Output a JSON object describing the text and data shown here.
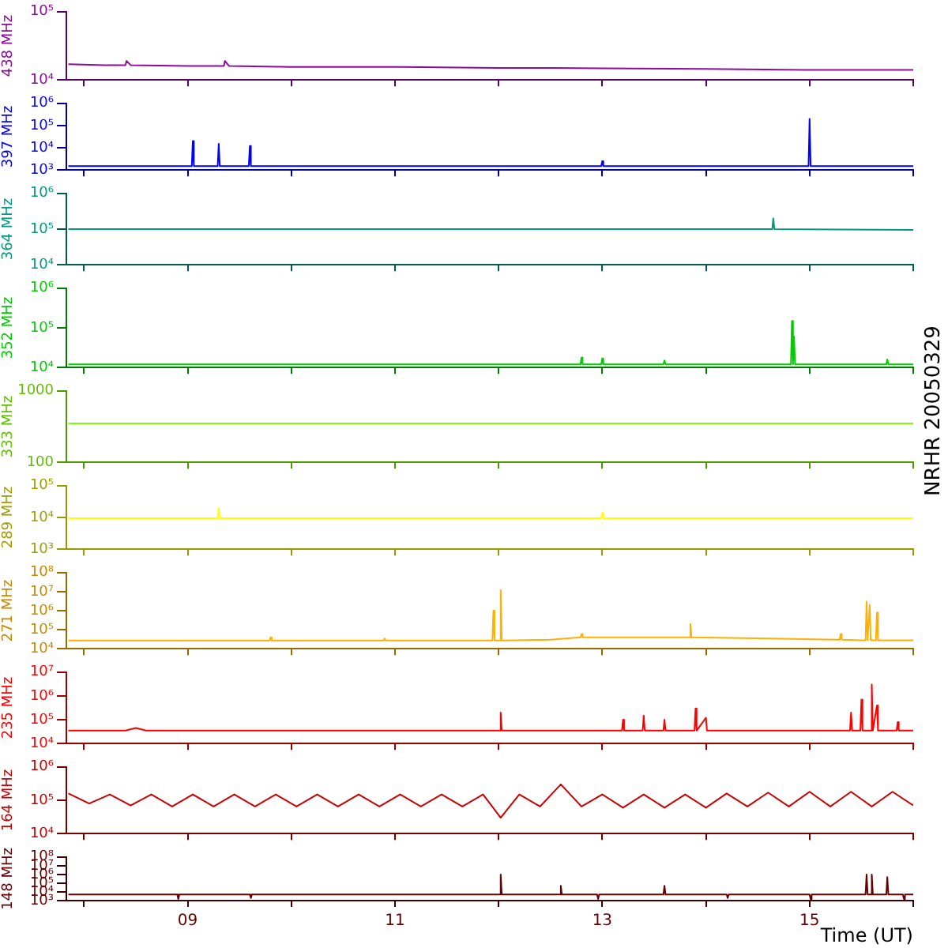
{
  "chart_data": [
    {
      "type": "line",
      "ylabel": "438 MHz",
      "color": "#8c0a9c",
      "log": true,
      "ylim": [
        10000,
        100000
      ],
      "yticks": [
        {
          "value": 10000,
          "label": "10⁴"
        },
        {
          "value": 100000,
          "label": "10⁵"
        }
      ],
      "xlim": [
        7.83,
        16
      ],
      "xticks": [
        {
          "value": 8,
          "label": null
        },
        {
          "value": 9,
          "label": null
        },
        {
          "value": 10,
          "label": null
        },
        {
          "value": 11,
          "label": null
        },
        {
          "value": 12,
          "label": null
        },
        {
          "value": 13,
          "label": null
        },
        {
          "value": 14,
          "label": null
        },
        {
          "value": 15,
          "label": null
        },
        {
          "value": 16,
          "label": null
        }
      ],
      "tick_labels": "y",
      "x": [
        7.85,
        8.2,
        8.4,
        8.41,
        8.45,
        9,
        9.35,
        9.36,
        9.4,
        10,
        11,
        12,
        12.5,
        13,
        14,
        15,
        15.5,
        16
      ],
      "values": [
        17000,
        16500,
        16500,
        19000,
        16500,
        16000,
        16000,
        19000,
        16000,
        15500,
        15500,
        15000,
        15000,
        14800,
        14500,
        14000,
        14000,
        14000
      ]
    },
    {
      "type": "line",
      "ylabel": "397 MHz",
      "color": "#0000ff",
      "log": true,
      "ylim": [
        1000,
        1000000
      ],
      "yticks": [
        {
          "value": 1000,
          "label": "10³"
        },
        {
          "value": 10000,
          "label": "10⁴"
        },
        {
          "value": 100000,
          "label": "10⁵"
        },
        {
          "value": 1000000,
          "label": "10⁶"
        }
      ],
      "xlim": [
        7.83,
        16
      ],
      "xticks": [
        {
          "value": 8,
          "label": null
        },
        {
          "value": 9,
          "label": null
        },
        {
          "value": 10,
          "label": null
        },
        {
          "value": 11,
          "label": null
        },
        {
          "value": 12,
          "label": null
        },
        {
          "value": 13,
          "label": null
        },
        {
          "value": 14,
          "label": null
        },
        {
          "value": 15,
          "label": null
        },
        {
          "value": 16,
          "label": null
        }
      ],
      "tick_labels": "y",
      "x": [
        7.85,
        9.04,
        9.05,
        9.06,
        9.29,
        9.3,
        9.31,
        9.59,
        9.6,
        9.61,
        12.99,
        13,
        13.01,
        14.99,
        15,
        15.01,
        16
      ],
      "values": [
        1500,
        1500,
        20000,
        1500,
        1500,
        15000,
        1500,
        1500,
        12000,
        1500,
        1500,
        2500,
        1500,
        1500,
        200000,
        1500,
        1500
      ]
    },
    {
      "type": "line",
      "ylabel": "364 MHz",
      "color": "#009980",
      "log": true,
      "ylim": [
        10000,
        1000000
      ],
      "yticks": [
        {
          "value": 10000,
          "label": "10⁴"
        },
        {
          "value": 100000,
          "label": "10⁵"
        },
        {
          "value": 1000000,
          "label": "10⁶"
        }
      ],
      "xlim": [
        7.83,
        16
      ],
      "xticks": [
        {
          "value": 8,
          "label": null
        },
        {
          "value": 9,
          "label": null
        },
        {
          "value": 10,
          "label": null
        },
        {
          "value": 11,
          "label": null
        },
        {
          "value": 12,
          "label": null
        },
        {
          "value": 13,
          "label": null
        },
        {
          "value": 14,
          "label": null
        },
        {
          "value": 15,
          "label": null
        },
        {
          "value": 16,
          "label": null
        }
      ],
      "tick_labels": "y",
      "x": [
        7.85,
        10,
        12,
        14.64,
        14.65,
        14.66,
        16
      ],
      "values": [
        100000,
        100000,
        100000,
        100000,
        200000,
        100000,
        95000
      ]
    },
    {
      "type": "line",
      "ylabel": "352 MHz",
      "color": "#00cc00",
      "log": true,
      "ylim": [
        10000,
        1000000
      ],
      "yticks": [
        {
          "value": 10000,
          "label": "10⁴"
        },
        {
          "value": 100000,
          "label": "10⁵"
        },
        {
          "value": 1000000,
          "label": "10⁶"
        }
      ],
      "xlim": [
        7.83,
        16
      ],
      "xticks": [
        {
          "value": 8,
          "label": null
        },
        {
          "value": 9,
          "label": null
        },
        {
          "value": 10,
          "label": null
        },
        {
          "value": 11,
          "label": null
        },
        {
          "value": 12,
          "label": null
        },
        {
          "value": 13,
          "label": null
        },
        {
          "value": 14,
          "label": null
        },
        {
          "value": 15,
          "label": null
        },
        {
          "value": 16,
          "label": null
        }
      ],
      "tick_labels": "y",
      "x": [
        7.85,
        10,
        12.79,
        12.8,
        12.81,
        12.99,
        13,
        13.01,
        13.59,
        13.6,
        13.61,
        14.82,
        14.83,
        14.84,
        14.85,
        14.86,
        15.74,
        15.75,
        15.76,
        16
      ],
      "values": [
        12000,
        12000,
        12000,
        18000,
        12000,
        12000,
        17000,
        12000,
        12000,
        15000,
        12000,
        12000,
        150000,
        12000,
        60000,
        12000,
        12000,
        16000,
        12000,
        12000
      ]
    },
    {
      "type": "line",
      "ylabel": "333 MHz",
      "color": "#80ff00",
      "log": true,
      "ylim": [
        100,
        1000
      ],
      "yticks": [
        100,
        1000
      ],
      "xlim": [
        7.83,
        16
      ],
      "xticks": [
        {
          "value": 8,
          "label": null
        },
        {
          "value": 9,
          "label": null
        },
        {
          "value": 10,
          "label": null
        },
        {
          "value": 11,
          "label": null
        },
        {
          "value": 12,
          "label": null
        },
        {
          "value": 13,
          "label": null
        },
        {
          "value": 14,
          "label": null
        },
        {
          "value": 15,
          "label": null
        },
        {
          "value": 16,
          "label": null
        }
      ],
      "tick_labels": "y",
      "annotations": [
        "NRHR 20050329"
      ],
      "x": [
        7.85,
        16
      ],
      "values": [
        350,
        350
      ]
    },
    {
      "type": "line",
      "ylabel": "289 MHz",
      "color": "#ffff00",
      "log": true,
      "ylim": [
        1000,
        100000
      ],
      "yticks": [
        {
          "value": 1000,
          "label": "10³"
        },
        {
          "value": 10000,
          "label": "10⁴"
        },
        {
          "value": 100000,
          "label": "10⁵"
        }
      ],
      "xlim": [
        7.83,
        16
      ],
      "xticks": [
        {
          "value": 8,
          "label": null
        },
        {
          "value": 9,
          "label": null
        },
        {
          "value": 10,
          "label": null
        },
        {
          "value": 11,
          "label": null
        },
        {
          "value": 12,
          "label": null
        },
        {
          "value": 13,
          "label": null
        },
        {
          "value": 14,
          "label": null
        },
        {
          "value": 15,
          "label": null
        },
        {
          "value": 16,
          "label": null
        }
      ],
      "tick_labels": "y",
      "x": [
        7.85,
        9.29,
        9.3,
        9.31,
        12.99,
        13,
        13.01,
        16
      ],
      "values": [
        9500,
        9500,
        20000,
        9500,
        9500,
        14000,
        9500,
        9500
      ]
    },
    {
      "type": "line",
      "ylabel": "271 MHz",
      "color": "#ffb000",
      "log": true,
      "ylim": [
        10000,
        100000000
      ],
      "yticks": [
        {
          "value": 10000,
          "label": "10⁴"
        },
        {
          "value": 100000,
          "label": "10⁵"
        },
        {
          "value": 1000000,
          "label": "10⁶"
        },
        {
          "value": 10000000,
          "label": "10⁷"
        },
        {
          "value": 100000000,
          "label": "10⁸"
        }
      ],
      "xlim": [
        7.83,
        16
      ],
      "xticks": [
        {
          "value": 8,
          "label": null
        },
        {
          "value": 9,
          "label": null
        },
        {
          "value": 10,
          "label": null
        },
        {
          "value": 11,
          "label": null
        },
        {
          "value": 12,
          "label": null
        },
        {
          "value": 13,
          "label": null
        },
        {
          "value": 14,
          "label": null
        },
        {
          "value": 15,
          "label": null
        },
        {
          "value": 16,
          "label": null
        }
      ],
      "tick_labels": "y",
      "x": [
        7.85,
        9.79,
        9.8,
        9.81,
        10.89,
        10.9,
        10.91,
        11.94,
        11.95,
        11.96,
        12.01,
        12.02,
        12.03,
        12.5,
        12.79,
        12.8,
        12.81,
        13.5,
        13.84,
        13.85,
        13.86,
        14.5,
        15.29,
        15.3,
        15.31,
        15.5,
        15.54,
        15.55,
        15.56,
        15.57,
        15.58,
        15.59,
        15.64,
        15.65,
        15.66,
        16
      ],
      "values": [
        27000,
        27000,
        40000,
        27000,
        27000,
        35000,
        27000,
        27000,
        1000000,
        27000,
        27000,
        12000000,
        27000,
        30000,
        40000,
        60000,
        40000,
        40000,
        40000,
        200000,
        40000,
        35000,
        30000,
        60000,
        30000,
        28000,
        28000,
        3000000,
        28000,
        28000,
        2000000,
        28000,
        28000,
        800000,
        28000,
        28000
      ]
    },
    {
      "type": "line",
      "ylabel": "235 MHz",
      "color": "#ff0000",
      "log": true,
      "ylim": [
        10000,
        10000000
      ],
      "yticks": [
        {
          "value": 10000,
          "label": "10⁴"
        },
        {
          "value": 100000,
          "label": "10⁵"
        },
        {
          "value": 1000000,
          "label": "10⁶"
        },
        {
          "value": 10000000,
          "label": "10⁷"
        }
      ],
      "xlim": [
        7.83,
        16
      ],
      "xticks": [
        {
          "value": 8,
          "label": null
        },
        {
          "value": 9,
          "label": null
        },
        {
          "value": 10,
          "label": null
        },
        {
          "value": 11,
          "label": null
        },
        {
          "value": 12,
          "label": null
        },
        {
          "value": 13,
          "label": null
        },
        {
          "value": 14,
          "label": null
        },
        {
          "value": 15,
          "label": null
        },
        {
          "value": 16,
          "label": null
        }
      ],
      "tick_labels": "y",
      "x": [
        7.85,
        8.4,
        8.5,
        8.6,
        12.01,
        12.02,
        12.03,
        13.19,
        13.2,
        13.21,
        13.39,
        13.4,
        13.41,
        13.59,
        13.6,
        13.61,
        13.89,
        13.9,
        13.91,
        14,
        14.01,
        15.39,
        15.4,
        15.41,
        15.49,
        15.5,
        15.51,
        15.59,
        15.6,
        15.61,
        15.65,
        15.66,
        15.84,
        15.85,
        15.86,
        16
      ],
      "values": [
        35000,
        35000,
        45000,
        35000,
        35000,
        200000,
        35000,
        35000,
        100000,
        35000,
        35000,
        150000,
        35000,
        35000,
        100000,
        35000,
        35000,
        300000,
        35000,
        120000,
        35000,
        35000,
        200000,
        35000,
        35000,
        700000,
        35000,
        35000,
        3000000,
        35000,
        400000,
        35000,
        35000,
        80000,
        35000,
        35000
      ]
    },
    {
      "type": "line",
      "ylabel": "164 MHz",
      "color": "#cc0000",
      "log": true,
      "ylim": [
        10000,
        1000000
      ],
      "yticks": [
        {
          "value": 10000,
          "label": "10⁴"
        },
        {
          "value": 100000,
          "label": "10⁵"
        },
        {
          "value": 1000000,
          "label": "10⁶"
        }
      ],
      "xlim": [
        7.83,
        16
      ],
      "xticks": [
        {
          "value": 8,
          "label": null
        },
        {
          "value": 9,
          "label": null
        },
        {
          "value": 10,
          "label": null
        },
        {
          "value": 11,
          "label": null
        },
        {
          "value": 12,
          "label": null
        },
        {
          "value": 13,
          "label": null
        },
        {
          "value": 14,
          "label": null
        },
        {
          "value": 15,
          "label": null
        },
        {
          "value": 16,
          "label": null
        }
      ],
      "tick_labels": "y",
      "x": [
        7.85,
        8.05,
        8.25,
        8.45,
        8.65,
        8.85,
        9.05,
        9.25,
        9.45,
        9.65,
        9.85,
        10.05,
        10.25,
        10.45,
        10.65,
        10.85,
        11.05,
        11.25,
        11.45,
        11.65,
        11.85,
        12.02,
        12.2,
        12.4,
        12.6,
        12.8,
        13,
        13.2,
        13.4,
        13.6,
        13.8,
        14,
        14.2,
        14.4,
        14.6,
        14.8,
        15,
        15.2,
        15.4,
        15.6,
        15.8,
        16
      ],
      "values": [
        160000,
        80000,
        150000,
        70000,
        150000,
        65000,
        150000,
        65000,
        150000,
        65000,
        150000,
        65000,
        150000,
        65000,
        150000,
        65000,
        150000,
        65000,
        150000,
        65000,
        150000,
        30000,
        150000,
        65000,
        300000,
        65000,
        150000,
        60000,
        150000,
        60000,
        150000,
        60000,
        160000,
        65000,
        170000,
        65000,
        180000,
        65000,
        180000,
        65000,
        180000,
        70000
      ]
    },
    {
      "type": "line",
      "ylabel": "148 MHz",
      "color": "#660000",
      "log": true,
      "ylim": [
        1000,
        100000000
      ],
      "yticks": [
        {
          "value": 1000,
          "label": "10³"
        },
        {
          "value": 10000,
          "label": "10⁴"
        },
        {
          "value": 100000,
          "label": "10⁵"
        },
        {
          "value": 1000000,
          "label": "10⁶"
        },
        {
          "value": 10000000,
          "label": "10⁷"
        },
        {
          "value": 100000000,
          "label": "10⁸"
        }
      ],
      "xlim": [
        7.83,
        16
      ],
      "xticks": [
        {
          "value": 8,
          "label": null
        },
        {
          "value": 9,
          "label": "09"
        },
        {
          "value": 10,
          "label": null
        },
        {
          "value": 11,
          "label": "11"
        },
        {
          "value": 12,
          "label": null
        },
        {
          "value": 13,
          "label": "13"
        },
        {
          "value": 14,
          "label": null
        },
        {
          "value": 15,
          "label": "15"
        },
        {
          "value": 16,
          "label": null
        }
      ],
      "xlabel": "Time (UT)",
      "x": [
        7.85,
        8.9,
        8.91,
        8.92,
        9.6,
        9.61,
        9.62,
        12.01,
        12.02,
        12.03,
        12.59,
        12.6,
        12.61,
        12.95,
        12.96,
        12.97,
        13.59,
        13.6,
        13.61,
        14.2,
        14.21,
        14.22,
        15.0,
        15.01,
        15.02,
        15.54,
        15.55,
        15.56,
        15.59,
        15.6,
        15.61,
        15.74,
        15.75,
        15.76,
        15.9,
        15.91,
        15.92,
        16
      ],
      "values": [
        5000,
        5000,
        1500,
        5000,
        5000,
        2000,
        5000,
        5000,
        1000000,
        5000,
        5000,
        50000,
        5000,
        5000,
        1500,
        5000,
        5000,
        50000,
        5000,
        5000,
        2000,
        5000,
        5000,
        1500,
        5000,
        5000,
        1000000,
        5000,
        5000,
        1000000,
        5000,
        5000,
        500000,
        5000,
        5000,
        1500,
        5000,
        5000
      ]
    }
  ]
}
